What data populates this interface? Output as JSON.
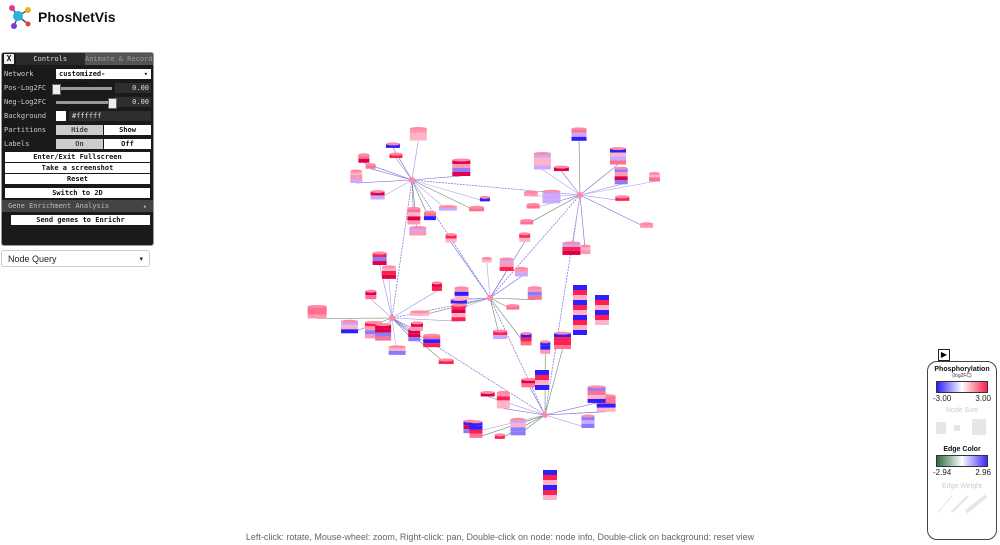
{
  "app": {
    "title": "PhosNetVis"
  },
  "controls": {
    "tab_controls": "Controls",
    "tab_animate": "Animate & Record",
    "network_label": "Network",
    "network_value": "customized-network...",
    "pos_label": "Pos-Log2FC",
    "pos_value": "0.00",
    "pos_fraction": 0.0,
    "neg_label": "Neg-Log2FC",
    "neg_value": "0.00",
    "neg_fraction": 1.0,
    "background_label": "Background",
    "background_value": "#ffffff",
    "partitions_label": "Partitions",
    "partitions_hide": "Hide",
    "partitions_show": "Show",
    "labels_label": "Labels",
    "labels_on": "On",
    "labels_off": "Off",
    "btn_fullscreen": "Enter/Exit Fullscreen",
    "btn_screenshot": "Take a screenshot",
    "btn_reset": "Reset",
    "btn_switch": "Switch to 2D",
    "gene_section": "Gene Enrichment Analysis",
    "btn_enrichr": "Send genes to Enrichr"
  },
  "node_query": {
    "label": "Node Query"
  },
  "hint": {
    "text": "Left-click: rotate, Mouse-wheel: zoom, Right-click: pan, Double-click on node: node info, Double-click on background: reset view"
  },
  "legend": {
    "phos_title": "Phosphorylation",
    "phos_sub": "(log2FC)",
    "phos_min": "-3.00",
    "phos_max": "3.00",
    "node_size": "Node Size",
    "edge_color_title": "Edge Color",
    "edge_min": "-2.94",
    "edge_max": "2.96",
    "edge_weight": "Edge Weight"
  },
  "colors": {
    "blue": "#2f1fff",
    "red": "#ff2050",
    "green": "#2e6b3c",
    "edge": "#7a6ad6"
  }
}
